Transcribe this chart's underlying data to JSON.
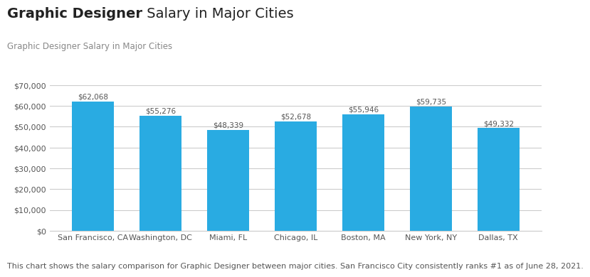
{
  "title_bold": "Graphic Designer",
  "title_regular": " Salary in Major Cities",
  "subtitle": "Graphic Designer Salary in Major Cities",
  "footnote": "This chart shows the salary comparison for Graphic Designer between major cities. San Francisco City consistently ranks #1 as of June 28, 2021.",
  "categories": [
    "San Francisco, CA",
    "Washington, DC",
    "Miami, FL",
    "Chicago, IL",
    "Boston, MA",
    "New York, NY",
    "Dallas, TX"
  ],
  "values": [
    62068,
    55276,
    48339,
    52678,
    55946,
    59735,
    49332
  ],
  "bar_color": "#29ABE2",
  "background_color": "#FFFFFF",
  "ylim": [
    0,
    70000
  ],
  "ytick_step": 10000,
  "label_color": "#555555",
  "title_fontsize": 14,
  "subtitle_fontsize": 8.5,
  "footnote_fontsize": 8,
  "bar_label_fontsize": 7.5,
  "xtick_fontsize": 8,
  "ytick_fontsize": 8,
  "grid_color": "#CCCCCC",
  "title_color": "#222222"
}
